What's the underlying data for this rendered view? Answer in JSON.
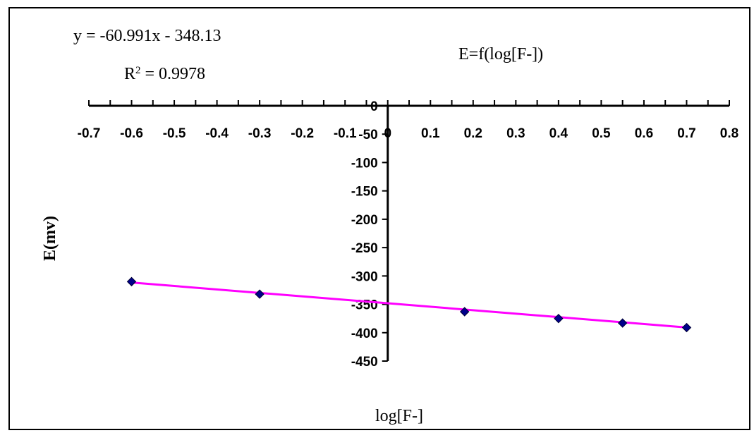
{
  "chart_data": {
    "type": "scatter",
    "title": "E=f(log[F-])",
    "xlabel": "log[F-]",
    "ylabel": "E(mv)",
    "xlim": [
      -0.7,
      0.8
    ],
    "ylim": [
      -450,
      0
    ],
    "x_ticks": [
      "-0.7",
      "-0.6",
      "-0.5",
      "-0.4",
      "-0.3",
      "-0.2",
      "-0.1",
      "0",
      "0.1",
      "0.2",
      "0.3",
      "0.4",
      "0.5",
      "0.6",
      "0.7",
      "0.8"
    ],
    "y_ticks": [
      "0",
      "-50",
      "-100",
      "-150",
      "-200",
      "-250",
      "-300",
      "-350",
      "-400",
      "-450"
    ],
    "grid": false,
    "series": [
      {
        "x": [
          -0.6,
          -0.3,
          0.18,
          0.4,
          0.55,
          0.7
        ],
        "y": [
          -310,
          -332,
          -363,
          -375,
          -383,
          -391
        ],
        "color": "#00008B"
      }
    ],
    "trendline": {
      "slope": -60.991,
      "intercept": -348.13,
      "x_range": [
        -0.6,
        0.7
      ],
      "color": "#FF00FF",
      "equation_label": "y = -60.991x - 348.13",
      "r2_prefix": "R",
      "r2_sup": "2",
      "r2_suffix": " = 0.9978"
    }
  }
}
